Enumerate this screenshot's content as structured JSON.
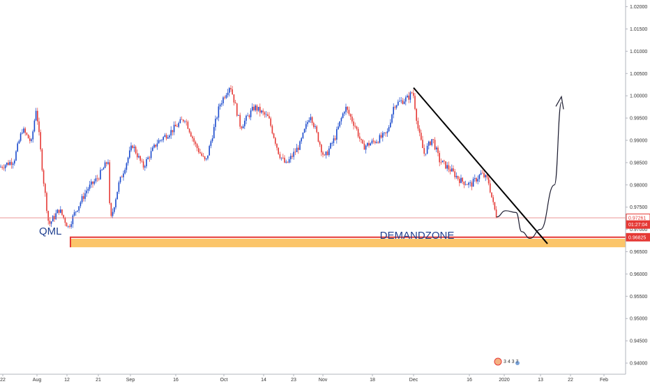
{
  "chart_data": {
    "type": "candlestick",
    "grid": false,
    "colors": {
      "up": "#1848cc",
      "down": "#e53935",
      "zone": "#fbc56a",
      "price_line": "#e53935",
      "annotation_blue": "#1f3f8f"
    },
    "ylim": [
      0.9375,
      1.0215
    ],
    "y_ticks": [
      "1.02000",
      "1.01500",
      "1.01000",
      "1.00500",
      "1.00000",
      "0.99500",
      "0.99000",
      "0.98500",
      "0.98000",
      "0.97500",
      "0.97000",
      "0.96500",
      "0.96000",
      "0.95500",
      "0.95000",
      "0.94500",
      "0.94000"
    ],
    "x_ticks": [
      "22",
      "Aug",
      "12",
      "21",
      "Sep",
      "16",
      "Oct",
      "14",
      "23",
      "Nov",
      "18",
      "Dec",
      "16",
      "2020",
      "13",
      "22",
      "Feb"
    ],
    "price_labels": [
      {
        "text": "0.97261",
        "value": 0.97261,
        "style": "outline"
      },
      {
        "text": "01:27:04",
        "value": 0.9711,
        "style": "filled"
      },
      {
        "text": "0.96825",
        "value": 0.96825,
        "style": "filled"
      }
    ],
    "close_path": [
      [
        0,
        0.984
      ],
      [
        20,
        0.9855
      ],
      [
        32,
        0.9925
      ],
      [
        45,
        0.9895
      ],
      [
        52,
        0.9975
      ],
      [
        62,
        0.9815
      ],
      [
        70,
        0.971
      ],
      [
        85,
        0.9745
      ],
      [
        98,
        0.9705
      ],
      [
        108,
        0.974
      ],
      [
        125,
        0.979
      ],
      [
        140,
        0.9815
      ],
      [
        155,
        0.9855
      ],
      [
        158,
        0.9715
      ],
      [
        170,
        0.98
      ],
      [
        190,
        0.989
      ],
      [
        205,
        0.984
      ],
      [
        225,
        0.9895
      ],
      [
        245,
        0.992
      ],
      [
        265,
        0.995
      ],
      [
        280,
        0.989
      ],
      [
        295,
        0.985
      ],
      [
        315,
        0.998
      ],
      [
        330,
        1.0025
      ],
      [
        345,
        0.993
      ],
      [
        365,
        0.9975
      ],
      [
        385,
        0.995
      ],
      [
        400,
        0.987
      ],
      [
        410,
        0.9845
      ],
      [
        430,
        0.989
      ],
      [
        445,
        0.996
      ],
      [
        465,
        0.986
      ],
      [
        480,
        0.9905
      ],
      [
        495,
        0.9975
      ],
      [
        510,
        0.993
      ],
      [
        520,
        0.9885
      ],
      [
        540,
        0.99
      ],
      [
        555,
        0.9915
      ],
      [
        565,
        0.998
      ],
      [
        585,
        0.9995
      ],
      [
        592,
        1.001
      ],
      [
        600,
        0.992
      ],
      [
        608,
        0.987
      ],
      [
        620,
        0.9905
      ],
      [
        630,
        0.9855
      ],
      [
        645,
        0.9835
      ],
      [
        660,
        0.981
      ],
      [
        675,
        0.98
      ],
      [
        690,
        0.9825
      ],
      [
        700,
        0.981
      ],
      [
        708,
        0.975
      ],
      [
        713,
        0.9726
      ]
    ],
    "annotations": {
      "demand_zone_label": "DEMANDZONE",
      "qml_label": "QML",
      "demand_zone_range": [
        0.966,
        0.9679
      ],
      "demand_zone_line": 0.96825,
      "trendline": {
        "from_value": 1.0018,
        "to_value": 0.9668
      },
      "sketch": [
        [
          712,
          0.9728
        ],
        [
          725,
          0.9742
        ],
        [
          740,
          0.9738
        ],
        [
          748,
          0.9695
        ],
        [
          760,
          0.968
        ],
        [
          775,
          0.97
        ],
        [
          795,
          0.98
        ],
        [
          805,
          0.9985
        ]
      ],
      "arrow_tip": 0.9998
    },
    "watermark": "3 4 3 7"
  }
}
